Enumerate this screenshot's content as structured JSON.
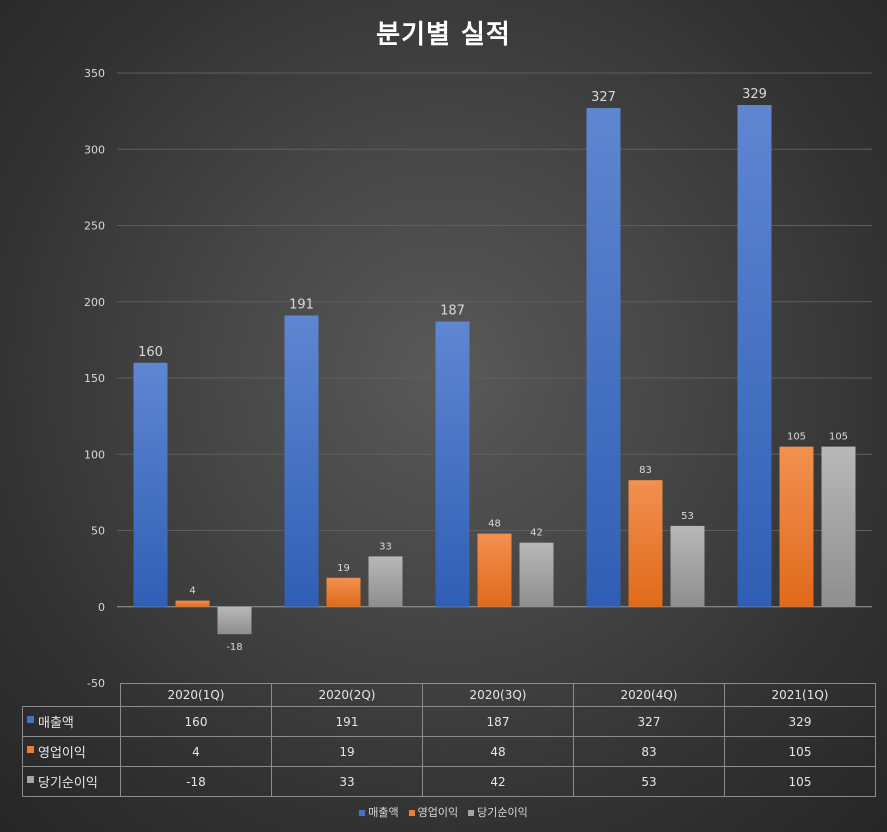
{
  "chart_data": {
    "type": "bar",
    "title": "분기별 실적",
    "categories": [
      "2020(1Q)",
      "2020(2Q)",
      "2020(3Q)",
      "2020(4Q)",
      "2021(1Q)"
    ],
    "series": [
      {
        "name": "매출액",
        "values": [
          160,
          191,
          187,
          327,
          329
        ],
        "color": "#4472c4"
      },
      {
        "name": "영업이익",
        "values": [
          4,
          19,
          48,
          83,
          105
        ],
        "color": "#ed7d31"
      },
      {
        "name": "당기순이익",
        "values": [
          -18,
          33,
          42,
          53,
          105
        ],
        "color": "#a5a5a5"
      }
    ],
    "y_ticks": [
      "350",
      "300",
      "250",
      "200",
      "150",
      "100",
      "50",
      "0",
      "-50"
    ],
    "ylim": [
      -50,
      350
    ],
    "grid": true,
    "legend": "bottom",
    "data_table": true
  }
}
